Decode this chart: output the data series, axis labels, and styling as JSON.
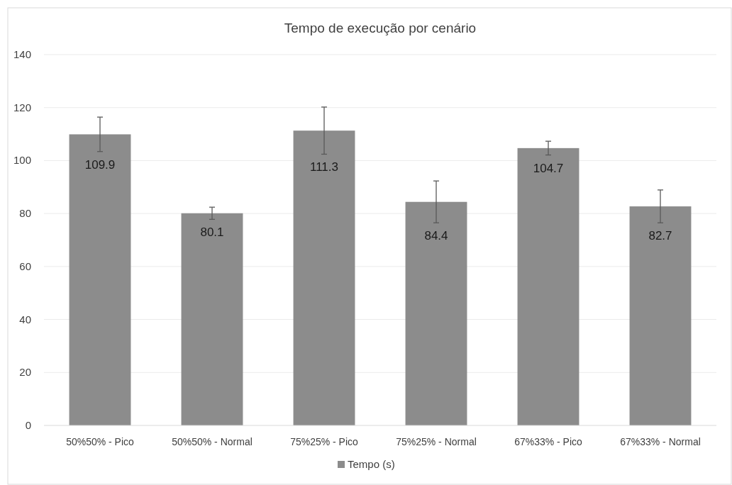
{
  "chart_data": {
    "type": "bar",
    "title": "Tempo de execução por cenário",
    "categories": [
      "50%50% - Pico",
      "50%50% - Normal",
      "75%25% - Pico",
      "75%25% - Normal",
      "67%33% - Pico",
      "67%33% - Normal"
    ],
    "series": [
      {
        "name": "Tempo (s)",
        "color": "#8c8c8c",
        "values": [
          109.9,
          80.1,
          111.3,
          84.4,
          104.7,
          82.7
        ],
        "errors": [
          6.5,
          2.3,
          8.9,
          7.9,
          2.6,
          6.2
        ]
      }
    ],
    "ylim": [
      0,
      140
    ],
    "yticks": [
      0,
      20,
      40,
      60,
      80,
      100,
      120,
      140
    ],
    "grid": "y",
    "legend": "bottom",
    "data_labels": true
  }
}
